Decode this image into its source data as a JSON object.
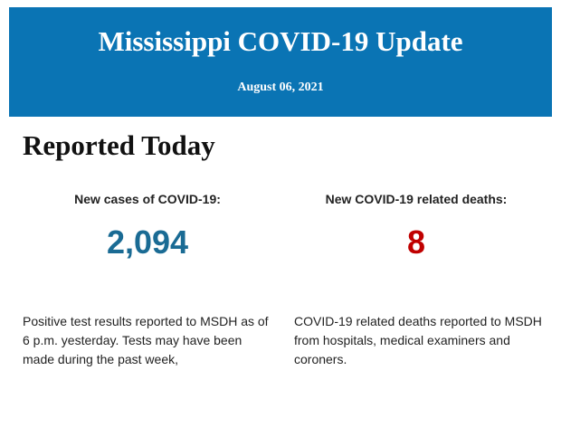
{
  "header": {
    "title": "Mississippi COVID-19 Update",
    "date": "August 06, 2021"
  },
  "section": {
    "title": "Reported Today",
    "stats": [
      {
        "label": "New cases of COVID-19:",
        "value": "2,094",
        "description": "Positive test results reported to MSDH as of 6 p.m. yesterday. Tests may have been made during the past week,"
      },
      {
        "label": "New COVID-19 related deaths:",
        "value": "8",
        "description": "COVID-19 related deaths reported to MSDH from hospitals, medical examiners and coroners."
      }
    ]
  }
}
